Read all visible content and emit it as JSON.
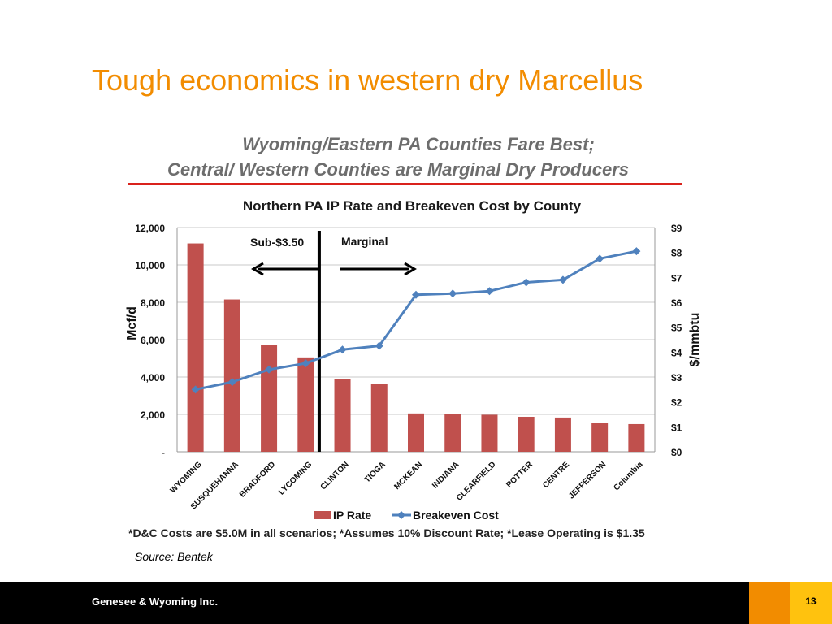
{
  "slide": {
    "title": "Tough economics in western dry Marcellus",
    "heading_line1": "Wyoming/Eastern PA Counties Fare Best;",
    "heading_line2": "Central/ Western Counties are Marginal Dry Producers",
    "footnote": "*D&C Costs are $5.0M in all scenarios;  *Assumes 10% Discount Rate; *Lease Operating is $1.35",
    "source": "Source: Bentek",
    "company": "Genesee & Wyoming Inc.",
    "page_number": "13"
  },
  "colors": {
    "title": "#f28c00",
    "bar": "#c0504d",
    "line": "#4f81bd",
    "rule": "#d9221c"
  },
  "chart_data": {
    "type": "bar",
    "title": "Northern PA IP Rate and Breakeven Cost by County",
    "categories": [
      "WYOMING",
      "SUSQUEHANNA",
      "BRADFORD",
      "LYCOMING",
      "CLINTON",
      "TIOGA",
      "MCKEAN",
      "INDIANA",
      "CLEARFIELD",
      "POTTER",
      "CENTRE",
      "JEFFERSON",
      "Columbia"
    ],
    "series": [
      {
        "name": "IP Rate",
        "type": "bar",
        "axis": "left",
        "values": [
          11150,
          8150,
          5700,
          5050,
          3900,
          3650,
          2050,
          2030,
          1980,
          1870,
          1830,
          1560,
          1480
        ]
      },
      {
        "name": "Breakeven Cost",
        "type": "line",
        "axis": "right",
        "values": [
          2.5,
          2.8,
          3.3,
          3.55,
          4.1,
          4.25,
          6.3,
          6.35,
          6.45,
          6.8,
          6.9,
          7.75,
          8.05
        ]
      }
    ],
    "ylabel_left": "Mcf/d",
    "ylabel_right": "$/mmbtu",
    "ylim_left": [
      0,
      12000
    ],
    "ylim_right": [
      0,
      9
    ],
    "yticks_left": [
      "-",
      "2,000",
      "4,000",
      "6,000",
      "8,000",
      "10,000",
      "12,000"
    ],
    "yticks_right": [
      "$0",
      "$1",
      "$2",
      "$3",
      "$4",
      "$5",
      "$6",
      "$7",
      "$8",
      "$9"
    ],
    "grid": true,
    "legend": "bottom",
    "annotations": [
      {
        "text": "Sub-$3.50",
        "arrow": "left"
      },
      {
        "text": "Marginal",
        "arrow": "right"
      }
    ]
  }
}
